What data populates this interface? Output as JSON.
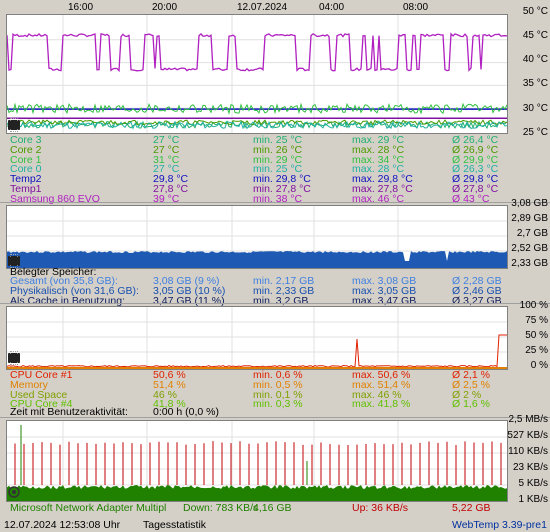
{
  "time_axis": [
    "16:00",
    "20:00",
    "12.07.2024",
    "04:00",
    "08:00"
  ],
  "temp": {
    "y_labels": [
      "50 °C",
      "45 °C",
      "40 °C",
      "35 °C",
      "30 °C",
      "25 °C"
    ],
    "rows": [
      {
        "name": "Core 3",
        "cur": "27 °C",
        "min": "min. 25 °C",
        "max": "max. 29 °C",
        "avg": "Ø 26,4 °C",
        "color": "#20b070"
      },
      {
        "name": "Core 2",
        "cur": "27 °C",
        "min": "min. 26 °C",
        "max": "max. 28 °C",
        "avg": "Ø 26,9 °C",
        "color": "#4a9a00"
      },
      {
        "name": "Core 1",
        "cur": "31 °C",
        "min": "min. 29 °C",
        "max": "max. 34 °C",
        "avg": "Ø 29,9 °C",
        "color": "#30c040"
      },
      {
        "name": "Core 0",
        "cur": "27 °C",
        "min": "min. 25 °C",
        "max": "max. 28 °C",
        "avg": "Ø 26,3 °C",
        "color": "#20b0a0"
      },
      {
        "name": "Temp2",
        "cur": "29,8 °C",
        "min": "min. 29,8 °C",
        "max": "max. 29,8 °C",
        "avg": "Ø 29,8 °C",
        "color": "#1010c0"
      },
      {
        "name": "Temp1",
        "cur": "27,8 °C",
        "min": "min. 27,8 °C",
        "max": "max. 27,8 °C",
        "avg": "Ø 27,8 °C",
        "color": "#8010a0"
      },
      {
        "name": "Samsung 860 EVO",
        "cur": "39 °C",
        "min": "min. 38 °C",
        "max": "max. 46 °C",
        "avg": "Ø 43 °C",
        "color": "#b020c0"
      }
    ]
  },
  "memory": {
    "y_labels": [
      "3,08 GB",
      "2,89 GB",
      "2,7 GB",
      "2,52 GB",
      "2,33 GB"
    ],
    "title": "Belegter Speicher:",
    "rows": [
      {
        "name": "Gesamt (von 35,8 GB):",
        "cur": "3,08 GB (9 %)",
        "min": "min. 2,17 GB",
        "max": "max. 3,08 GB",
        "avg": "Ø 2,28 GB",
        "color": "#4080e0"
      },
      {
        "name": "Physikalisch (von 31,6 GB):",
        "cur": "3,05 GB (10 %)",
        "min": "min. 2,33 GB",
        "max": "max. 3,05 GB",
        "avg": "Ø 2,46 GB",
        "color": "#1850b0"
      },
      {
        "name": "Als Cache in Benutzung:",
        "cur": "3,47 GB (11 %)",
        "min": "min. 3,2 GB",
        "max": "max. 3,47 GB",
        "avg": "Ø 3,27 GB",
        "color": "#102060"
      }
    ]
  },
  "cpu": {
    "y_labels": [
      "100 %",
      "75 %",
      "50 %",
      "25 %",
      "0 %"
    ],
    "rows": [
      {
        "name": "CPU Core #1",
        "cur": "50,6 %",
        "min": "min. 0,6 %",
        "max": "max. 50,6 %",
        "avg": "Ø 2,1 %",
        "color": "#e02000"
      },
      {
        "name": "Memory",
        "cur": "51,4 %",
        "min": "min. 0,5 %",
        "max": "max. 51,4 %",
        "avg": "Ø 2,5 %",
        "color": "#e08000"
      },
      {
        "name": "Used Space",
        "cur": "46 %",
        "min": "min. 0,1 %",
        "max": "max. 46 %",
        "avg": "Ø 2 %",
        "color": "#80a000"
      },
      {
        "name": "CPU Core #4",
        "cur": "41,8 %",
        "min": "min. 0,3 %",
        "max": "max. 41,8 %",
        "avg": "Ø 1,6 %",
        "color": "#60c000"
      }
    ],
    "activity_label": "Zeit mit Benutzeraktivität:",
    "activity_value": "0:00 h (0,0 %)"
  },
  "network": {
    "y_labels": [
      "2,5 MB/s",
      "527 KB/s",
      "110 KB/s",
      "23 KB/s",
      "5 KB/s",
      "1 KB/s"
    ],
    "adapter": "Microsoft Network Adapter Multipl",
    "down": "Down: 783 KB/s",
    "down_total": "4,16 GB",
    "up": "Up: 36 KB/s",
    "up_total": "5,22 GB"
  },
  "status": {
    "datetime": "12.07.2024 12:53:08 Uhr",
    "mode": "Tagesstatistik",
    "version": "WebTemp 3.39-pre1"
  },
  "colors": {
    "mem_fill": "#1e5ab4",
    "net_down": "#208000",
    "net_up": "#c00000",
    "cpu_line": "#e02000",
    "gridline": "#e0e0e0"
  }
}
